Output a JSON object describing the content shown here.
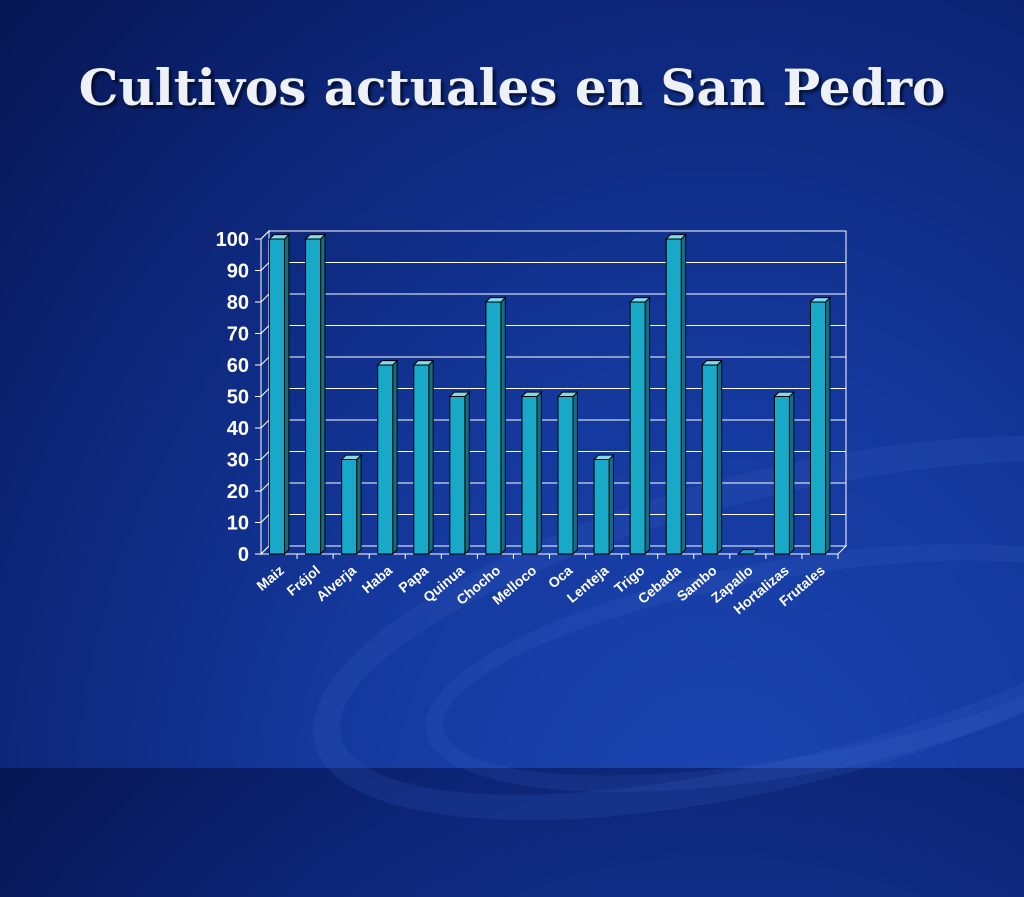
{
  "slide": {
    "title": "Cultivos actuales en San Pedro"
  },
  "colors": {
    "bar_front": "#19a9c8",
    "bar_side": "#0f6f85",
    "bar_top": "#7fdcef",
    "grid": "#ffffff",
    "text": "#ffffff"
  },
  "chart_data": {
    "type": "bar",
    "title": "Cultivos actuales en San Pedro",
    "xlabel": "",
    "ylabel": "",
    "ylim": [
      0,
      100
    ],
    "yticks": [
      0,
      10,
      20,
      30,
      40,
      50,
      60,
      70,
      80,
      90,
      100
    ],
    "grid": true,
    "legend": false,
    "three_d": true,
    "categories": [
      "Maiz",
      "Fréjol",
      "Alverja",
      "Haba",
      "Papa",
      "Quinua",
      "Chocho",
      "Melloco",
      "Oca",
      "Lenteja",
      "Trigo",
      "Cebada",
      "Sambo",
      "Zapallo",
      "Hortalizas",
      "Frutales"
    ],
    "values": [
      100,
      100,
      30,
      60,
      60,
      50,
      80,
      50,
      50,
      30,
      80,
      100,
      60,
      0,
      50,
      80
    ]
  }
}
